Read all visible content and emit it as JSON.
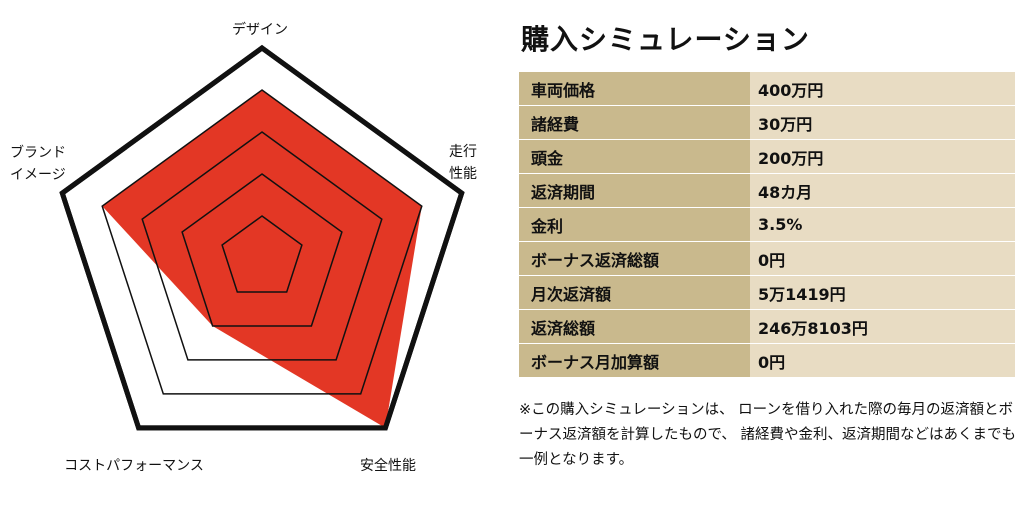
{
  "chart_data": {
    "type": "radar",
    "axes": [
      "デザイン",
      "走行\n性能",
      "安全性能",
      "コストパフォーマンス",
      "ブランド\nイメージ"
    ],
    "levels": 5,
    "values": [
      4,
      4,
      5,
      2,
      4
    ],
    "max": 5,
    "fill_color": "#e33725",
    "line_color": "#111111"
  },
  "simulation": {
    "title": "購入シミュレーション",
    "rows": [
      {
        "label": "車両価格",
        "value": "400万円"
      },
      {
        "label": "諸経費",
        "value": "30万円"
      },
      {
        "label": "頭金",
        "value": "200万円"
      },
      {
        "label": "返済期間",
        "value": "48カ月"
      },
      {
        "label": "金利",
        "value": "3.5%"
      },
      {
        "label": "ボーナス返済総額",
        "value": "0円"
      },
      {
        "label": "月次返済額",
        "value": "5万1419円"
      },
      {
        "label": "返済総額",
        "value": "246万8103円"
      },
      {
        "label": "ボーナス月加算額",
        "value": "0円"
      }
    ],
    "note": "※この購入シミュレーションは、 ローンを借り入れた際の毎月の返済額とボーナス返済額を計算したもので、 諸経費や金利、返済期間などはあくまでも一例となります。",
    "key_color": "#c9b98d",
    "value_color": "#e8dcc3"
  }
}
